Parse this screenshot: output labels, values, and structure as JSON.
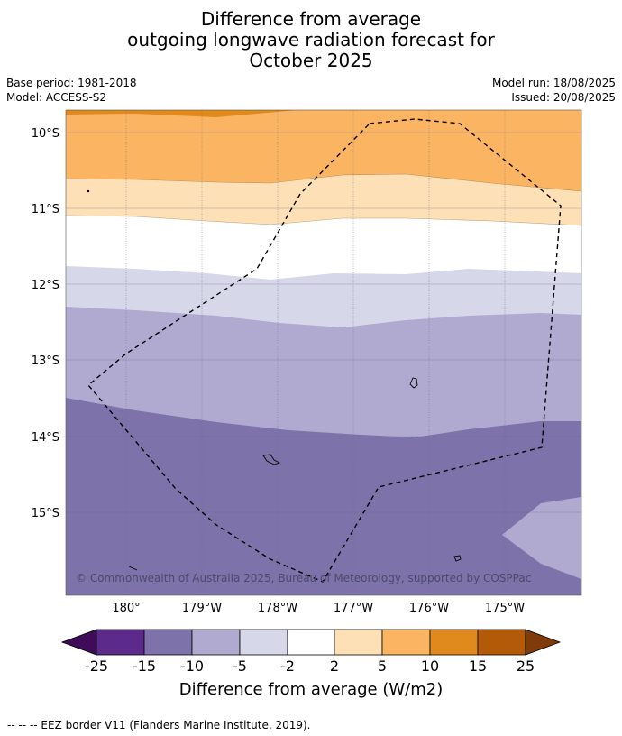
{
  "title": {
    "line1": "Difference from average",
    "line2": "outgoing longwave radiation forecast for",
    "line3": "October 2025"
  },
  "meta": {
    "base_period": "Base period: 1981-2018",
    "model": "Model: ACCESS-S2",
    "model_run": "Model run: 18/08/2025",
    "issued": "Issued: 20/08/2025"
  },
  "map": {
    "lat_labels": [
      "10°S",
      "11°S",
      "12°S",
      "13°S",
      "14°S",
      "15°S"
    ],
    "lon_labels": [
      "180°",
      "179°W",
      "178°W",
      "177°W",
      "176°W",
      "175°W"
    ],
    "copyright": "© Commonwealth of Australia 2025, Bureau of Meteorology, supported by COSPPac",
    "band_colors": {
      "dark_orange": "#e08a1e",
      "orange": "#fbb562",
      "light_orange": "#fde0b6",
      "white": "#ffffff",
      "light_purple": "#d7d7ea",
      "mid_purple": "#b0a9d0",
      "purple": "#7e72aa"
    }
  },
  "colorbar": {
    "ticks": [
      "-25",
      "-15",
      "-10",
      "-5",
      "-2",
      "2",
      "5",
      "10",
      "15",
      "25"
    ],
    "label": "Difference from average (W/m2)",
    "colors": [
      "#3f0d58",
      "#5b2a8a",
      "#7e72aa",
      "#b0a9d0",
      "#d7d7ea",
      "#ffffff",
      "#fde0b6",
      "#fbb562",
      "#e08a1e",
      "#b35a08",
      "#7f3b08"
    ]
  },
  "footnote": "--  --  -- EEZ border V11 (Flanders Marine Institute, 2019)."
}
